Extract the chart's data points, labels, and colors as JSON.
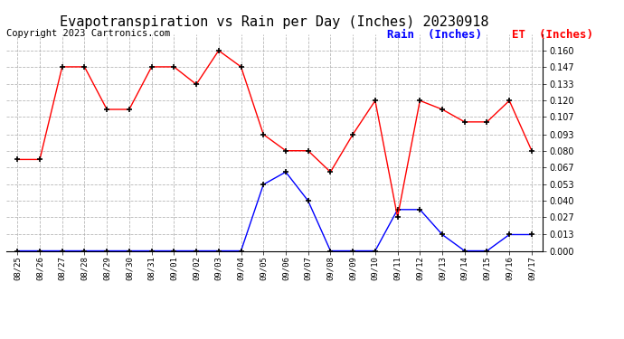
{
  "title": "Evapotranspiration vs Rain per Day (Inches) 20230918",
  "copyright": "Copyright 2023 Cartronics.com",
  "legend_rain": "Rain  (Inches)",
  "legend_et": "ET  (Inches)",
  "x_labels": [
    "08/25",
    "08/26",
    "08/27",
    "08/28",
    "08/29",
    "08/30",
    "08/31",
    "09/01",
    "09/02",
    "09/03",
    "09/04",
    "09/05",
    "09/06",
    "09/07",
    "09/08",
    "09/09",
    "09/10",
    "09/11",
    "09/12",
    "09/13",
    "09/14",
    "09/15",
    "09/16",
    "09/17"
  ],
  "et_values": [
    0.073,
    0.073,
    0.147,
    0.147,
    0.113,
    0.113,
    0.147,
    0.147,
    0.133,
    0.16,
    0.147,
    0.093,
    0.08,
    0.08,
    0.063,
    0.093,
    0.12,
    0.027,
    0.12,
    0.113,
    0.103,
    0.103,
    0.12,
    0.08
  ],
  "rain_values": [
    0.0,
    0.0,
    0.0,
    0.0,
    0.0,
    0.0,
    0.0,
    0.0,
    0.0,
    0.0,
    0.0,
    0.053,
    0.063,
    0.04,
    0.0,
    0.0,
    0.0,
    0.033,
    0.033,
    0.013,
    0.0,
    0.0,
    0.013,
    0.013
  ],
  "et_color": "#ff0000",
  "rain_color": "#0000ff",
  "title_fontsize": 11,
  "copyright_fontsize": 7.5,
  "legend_fontsize": 9,
  "ylim": [
    0.0,
    0.1733
  ],
  "yticks": [
    0.0,
    0.013,
    0.027,
    0.04,
    0.053,
    0.067,
    0.08,
    0.093,
    0.107,
    0.12,
    0.133,
    0.147,
    0.16
  ],
  "background_color": "#ffffff",
  "grid_color": "#b0b0b0"
}
